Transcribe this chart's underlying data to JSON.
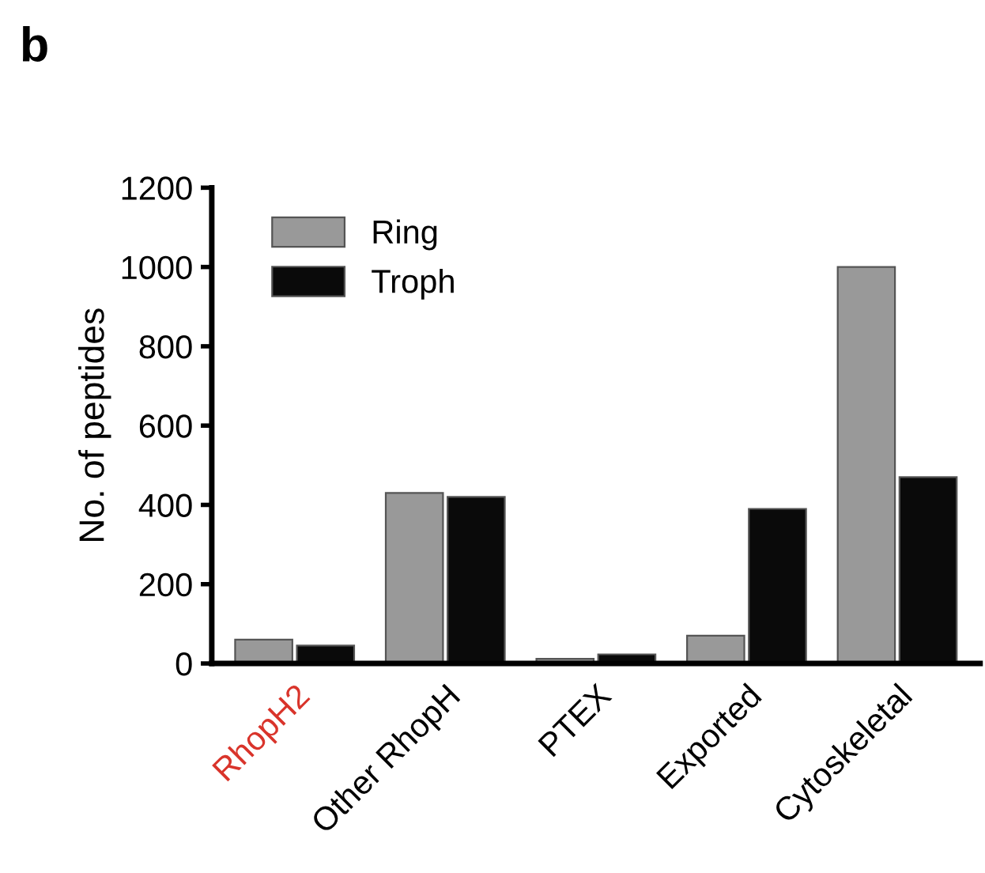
{
  "chart_data": {
    "type": "bar",
    "title": "b",
    "ylabel": "No. of peptides",
    "categories": [
      "RhopH2",
      "Other RhopH",
      "PTEX",
      "Exported",
      "Cytoskeletal"
    ],
    "series": [
      {
        "name": "Ring",
        "color": "#999999",
        "values": [
          60,
          430,
          12,
          70,
          1000
        ]
      },
      {
        "name": "Troph",
        "color": "#0a0a0a",
        "values": [
          45,
          420,
          23,
          390,
          470
        ]
      }
    ],
    "ylim": [
      0,
      1200
    ],
    "yticks": [
      0,
      200,
      400,
      600,
      800,
      1000,
      1200
    ],
    "grid": false,
    "legend": "top left"
  }
}
